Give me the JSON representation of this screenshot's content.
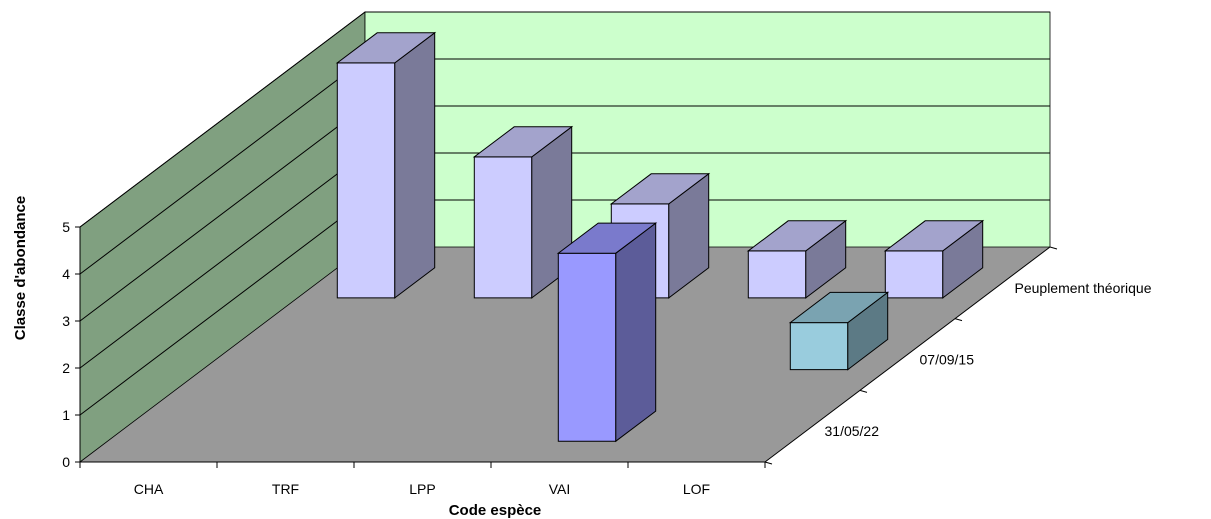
{
  "chart_data": {
    "type": "bar",
    "subtype": "3d-column",
    "title": "",
    "xlabel": "Code espèce",
    "ylabel": "Classe d'abondance",
    "ylim": [
      0,
      5
    ],
    "yticks": [
      "0",
      "1",
      "2",
      "3",
      "4",
      "5"
    ],
    "categories": [
      "CHA",
      "TRF",
      "LPP",
      "VAI",
      "LOF"
    ],
    "series": [
      {
        "name": "31/05/22",
        "values": [
          0,
          0,
          0,
          4,
          0
        ],
        "color": "#9999ff"
      },
      {
        "name": "07/09/15",
        "values": [
          0,
          0,
          0,
          0,
          1
        ],
        "color": "#99ccdd"
      },
      {
        "name": "Peuplement théorique",
        "values": [
          5,
          3,
          2,
          1,
          1
        ],
        "color": "#ccccff"
      }
    ],
    "grid": true,
    "colors": {
      "wall": "#ccffcc",
      "side_wall": "#80a080",
      "floor": "#999999"
    }
  }
}
